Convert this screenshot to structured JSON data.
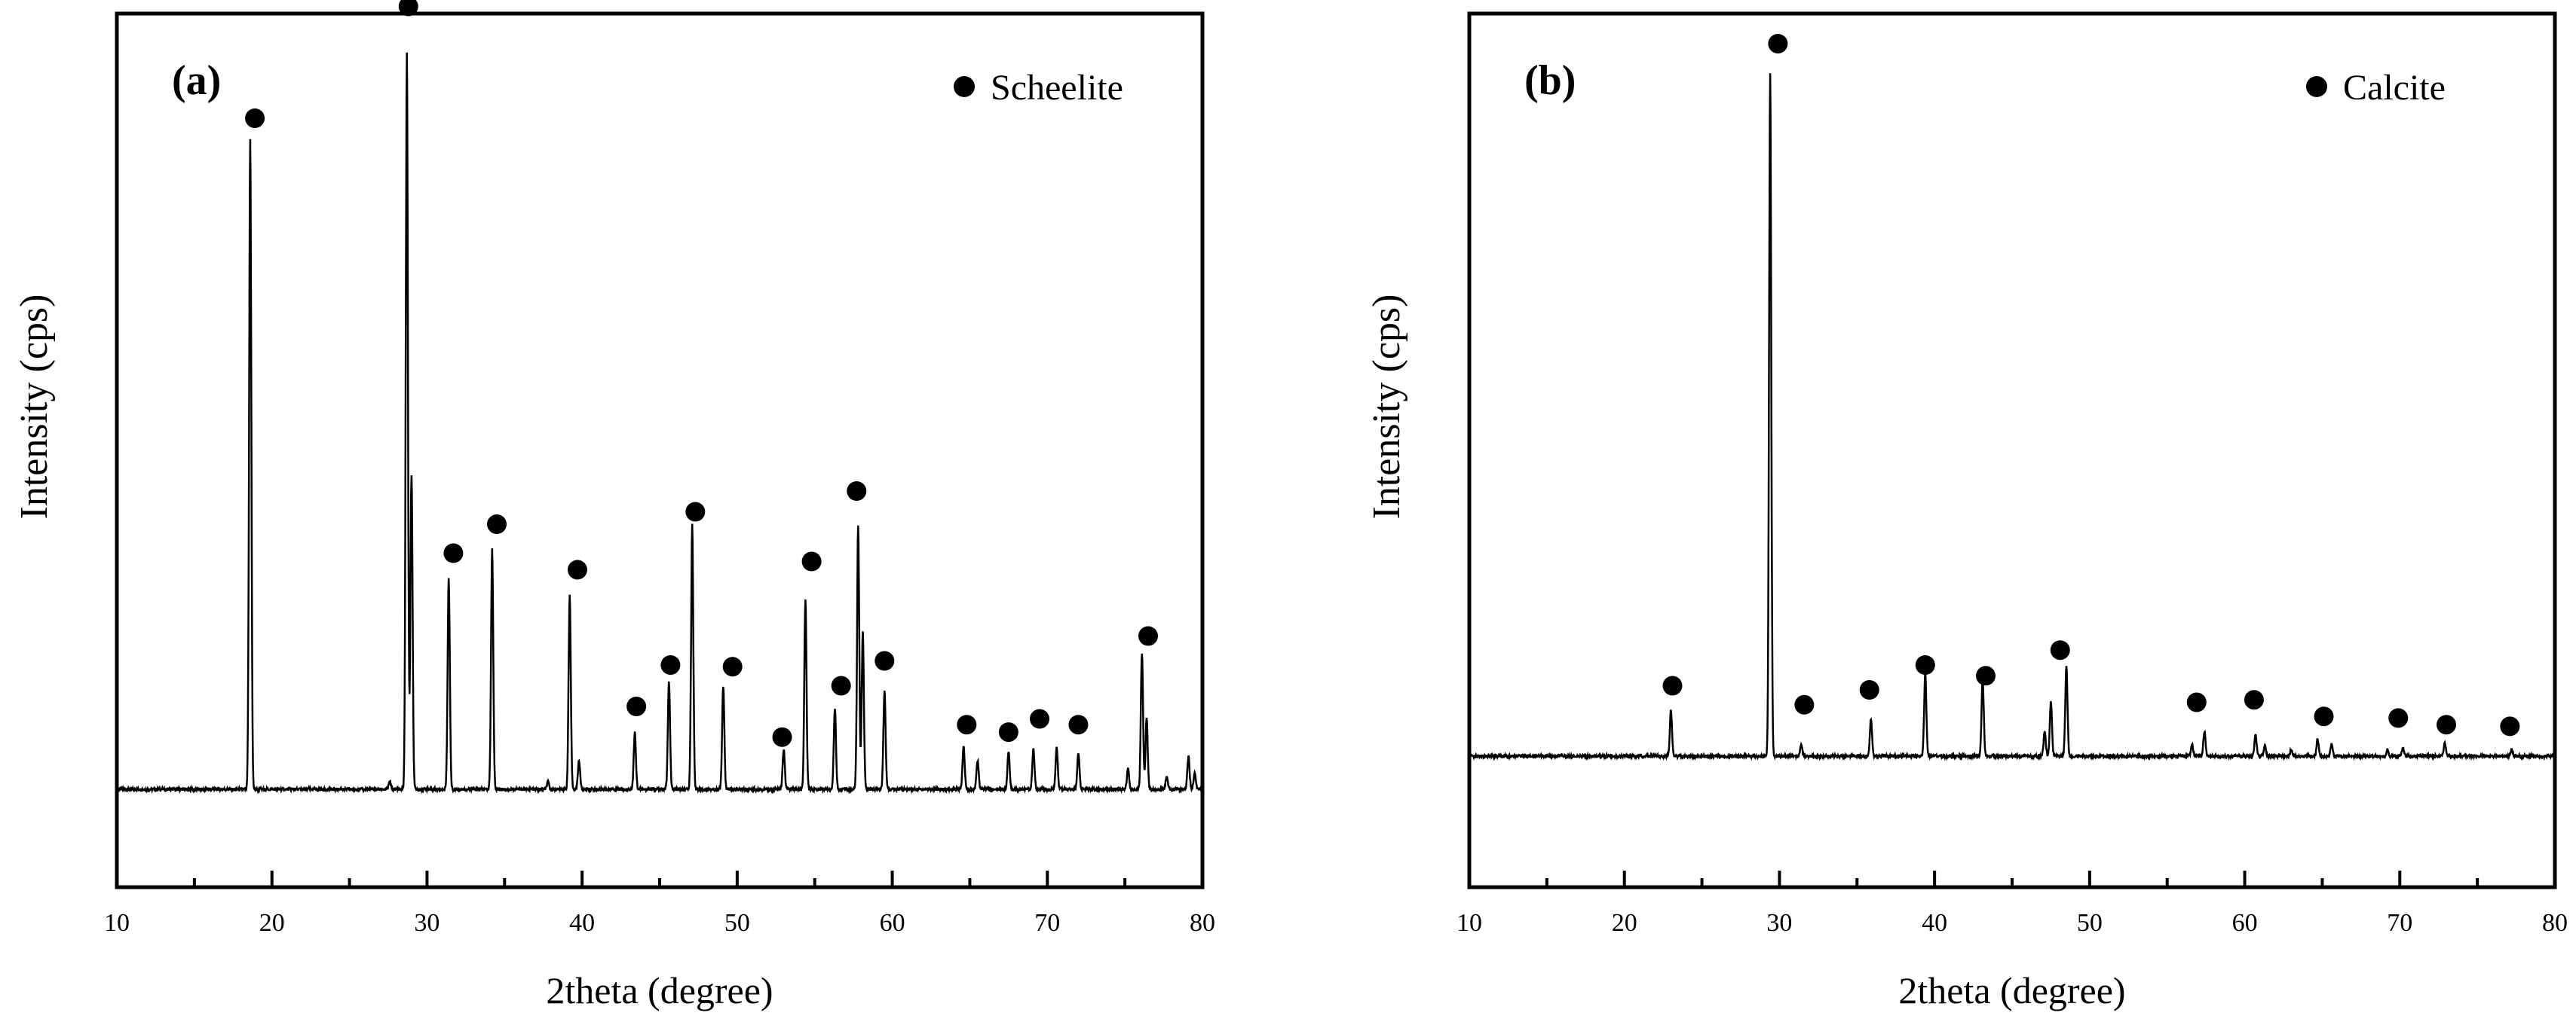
{
  "chart_data": [
    {
      "type": "line",
      "panel_label": "(a)",
      "title": "",
      "xlabel": "2theta (degree)",
      "ylabel": "Intensity (cps)",
      "xlim": [
        10,
        80
      ],
      "xticks": [
        "10",
        "20",
        "30",
        "40",
        "50",
        "60",
        "70",
        "80"
      ],
      "ylim": [
        0,
        100
      ],
      "grid": false,
      "legend": {
        "label": "Scheelite",
        "marker": "filled-circle",
        "placement": "top-right"
      },
      "baseline": 10,
      "peaks": [
        {
          "x": 18.6,
          "y": 88.5
        },
        {
          "x": 27.6,
          "y": 10.9
        },
        {
          "x": 28.7,
          "y": 99.0
        },
        {
          "x": 29.0,
          "y": 48.0
        },
        {
          "x": 31.4,
          "y": 35.5
        },
        {
          "x": 34.2,
          "y": 39.0
        },
        {
          "x": 37.8,
          "y": 10.9
        },
        {
          "x": 39.2,
          "y": 33.5
        },
        {
          "x": 39.8,
          "y": 13.5
        },
        {
          "x": 43.4,
          "y": 16.8
        },
        {
          "x": 45.6,
          "y": 23.0
        },
        {
          "x": 47.1,
          "y": 42.0
        },
        {
          "x": 49.1,
          "y": 22.5
        },
        {
          "x": 53.0,
          "y": 14.8
        },
        {
          "x": 54.4,
          "y": 33.0
        },
        {
          "x": 56.3,
          "y": 19.8
        },
        {
          "x": 57.8,
          "y": 42.0
        },
        {
          "x": 58.1,
          "y": 29.0
        },
        {
          "x": 59.5,
          "y": 22.0
        },
        {
          "x": 64.6,
          "y": 15.2
        },
        {
          "x": 65.5,
          "y": 13.5
        },
        {
          "x": 67.5,
          "y": 14.5
        },
        {
          "x": 69.1,
          "y": 14.8
        },
        {
          "x": 70.6,
          "y": 15.0
        },
        {
          "x": 72.0,
          "y": 14.5
        },
        {
          "x": 75.2,
          "y": 12.5
        },
        {
          "x": 76.1,
          "y": 26.5
        },
        {
          "x": 76.4,
          "y": 18.5
        },
        {
          "x": 77.7,
          "y": 11.5
        },
        {
          "x": 79.1,
          "y": 14.0
        },
        {
          "x": 79.5,
          "y": 12.0
        }
      ],
      "markers": [
        {
          "x": 18.9,
          "y": 91.0
        },
        {
          "x": 28.8,
          "y": 104.5
        },
        {
          "x": 31.7,
          "y": 38.5
        },
        {
          "x": 34.5,
          "y": 42.0
        },
        {
          "x": 39.7,
          "y": 36.5
        },
        {
          "x": 43.5,
          "y": 20.0
        },
        {
          "x": 45.7,
          "y": 25.0
        },
        {
          "x": 47.3,
          "y": 43.5
        },
        {
          "x": 49.7,
          "y": 24.8
        },
        {
          "x": 52.9,
          "y": 16.3
        },
        {
          "x": 54.8,
          "y": 37.5
        },
        {
          "x": 56.7,
          "y": 22.5
        },
        {
          "x": 57.7,
          "y": 46.0
        },
        {
          "x": 59.5,
          "y": 25.5
        },
        {
          "x": 64.8,
          "y": 17.8
        },
        {
          "x": 67.5,
          "y": 16.9
        },
        {
          "x": 69.5,
          "y": 18.5
        },
        {
          "x": 72.0,
          "y": 17.8
        },
        {
          "x": 76.5,
          "y": 28.5
        }
      ]
    },
    {
      "type": "line",
      "panel_label": "(b)",
      "title": "",
      "xlabel": "2theta (degree)",
      "ylabel": "Intensity (cps)",
      "xlim": [
        10,
        80
      ],
      "xticks": [
        "10",
        "20",
        "30",
        "40",
        "50",
        "60",
        "70",
        "80"
      ],
      "ylim": [
        0,
        100
      ],
      "grid": false,
      "legend": {
        "label": "Calcite",
        "marker": "filled-circle",
        "placement": "top-right"
      },
      "baseline": 14,
      "peaks": [
        {
          "x": 23.0,
          "y": 19.5
        },
        {
          "x": 29.4,
          "y": 96.5
        },
        {
          "x": 31.4,
          "y": 15.5
        },
        {
          "x": 35.9,
          "y": 18.5
        },
        {
          "x": 39.4,
          "y": 24.0
        },
        {
          "x": 43.1,
          "y": 23.5
        },
        {
          "x": 47.1,
          "y": 17.0
        },
        {
          "x": 47.5,
          "y": 20.5
        },
        {
          "x": 48.5,
          "y": 25.0
        },
        {
          "x": 56.6,
          "y": 15.5
        },
        {
          "x": 57.4,
          "y": 17.0
        },
        {
          "x": 60.7,
          "y": 16.5
        },
        {
          "x": 61.3,
          "y": 15.3
        },
        {
          "x": 63.0,
          "y": 14.8
        },
        {
          "x": 64.7,
          "y": 16.0
        },
        {
          "x": 65.6,
          "y": 15.5
        },
        {
          "x": 69.2,
          "y": 14.8
        },
        {
          "x": 70.2,
          "y": 15.0
        },
        {
          "x": 72.9,
          "y": 15.5
        },
        {
          "x": 77.2,
          "y": 14.8
        }
      ],
      "markers": [
        {
          "x": 23.1,
          "y": 22.5
        },
        {
          "x": 29.9,
          "y": 100.0
        },
        {
          "x": 31.6,
          "y": 20.2
        },
        {
          "x": 35.8,
          "y": 22.0
        },
        {
          "x": 39.4,
          "y": 25.0
        },
        {
          "x": 43.3,
          "y": 23.7
        },
        {
          "x": 48.1,
          "y": 26.8
        },
        {
          "x": 56.9,
          "y": 20.5
        },
        {
          "x": 60.6,
          "y": 20.8
        },
        {
          "x": 65.1,
          "y": 18.8
        },
        {
          "x": 69.9,
          "y": 18.6
        },
        {
          "x": 73.0,
          "y": 17.8
        },
        {
          "x": 77.1,
          "y": 17.6
        }
      ]
    }
  ]
}
